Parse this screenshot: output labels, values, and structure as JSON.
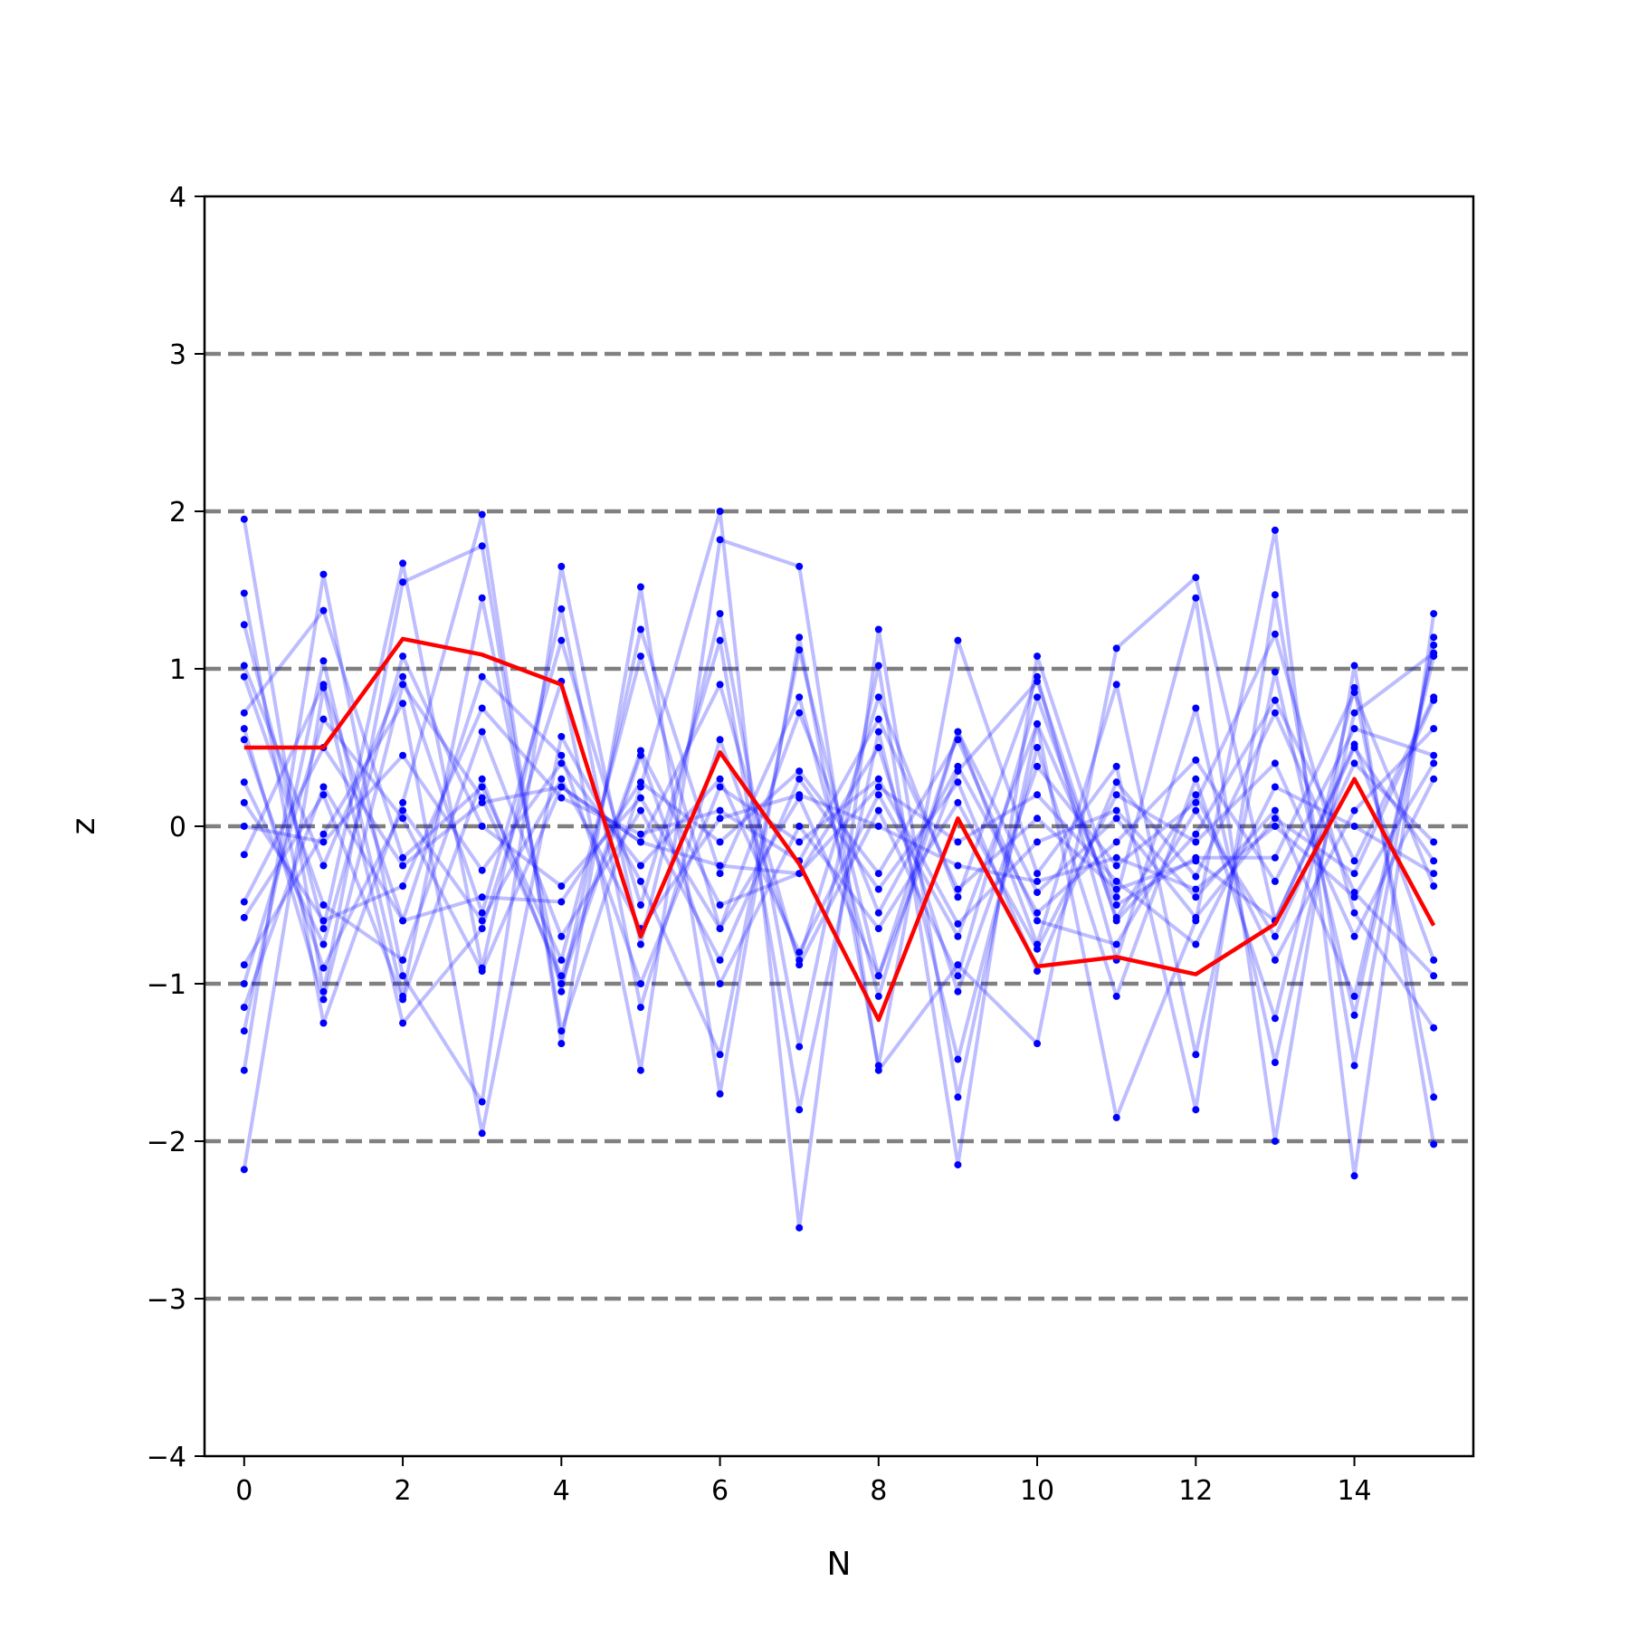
{
  "chart_data": {
    "type": "line",
    "title": "",
    "xlabel": "N",
    "ylabel": "z",
    "xlim": [
      -0.5,
      15.5
    ],
    "ylim": [
      -4,
      4
    ],
    "x": [
      0,
      1,
      2,
      3,
      4,
      5,
      6,
      7,
      8,
      9,
      10,
      11,
      12,
      13,
      14,
      15
    ],
    "xticks": [
      0,
      2,
      4,
      6,
      8,
      10,
      12,
      14
    ],
    "xtick_labels": [
      "0",
      "2",
      "4",
      "6",
      "8",
      "10",
      "12",
      "14"
    ],
    "yticks": [
      -4,
      -3,
      -2,
      -1,
      0,
      1,
      2,
      3,
      4
    ],
    "ytick_labels": [
      "−4",
      "−3",
      "−2",
      "−1",
      "0",
      "1",
      "2",
      "3",
      "4"
    ],
    "reference_lines": [
      -3,
      -2,
      -1,
      0,
      1,
      2,
      3
    ],
    "colors": {
      "samples": "#0000ff",
      "highlight": "#ff0000",
      "reference": "#808080"
    },
    "highlight": [
      0.5,
      0.5,
      1.19,
      1.09,
      0.9,
      -0.7,
      0.47,
      -0.24,
      -1.23,
      0.05,
      -0.89,
      -0.83,
      -0.94,
      -0.62,
      0.3,
      -0.63
    ],
    "series": [
      {
        "values": [
          1.95,
          -1.05,
          1.55,
          1.78,
          -1.3,
          0.25,
          2.0,
          -2.55,
          1.25,
          -1.72,
          0.65,
          -1.85,
          -0.6,
          1.88,
          -2.22,
          1.35
        ]
      },
      {
        "values": [
          -2.18,
          0.88,
          -1.25,
          -0.65,
          0.92,
          -1.55,
          1.82,
          1.65,
          -1.55,
          -0.88,
          -1.38,
          1.13,
          1.58,
          -0.6,
          0.52,
          -0.85
        ]
      },
      {
        "values": [
          1.48,
          -1.25,
          0.15,
          1.98,
          -1.38,
          1.52,
          -1.7,
          1.2,
          -1.52,
          1.18,
          -0.3,
          0.38,
          -1.8,
          1.47,
          -1.52,
          1.2
        ]
      },
      {
        "values": [
          -1.55,
          1.6,
          -0.95,
          -1.75,
          1.65,
          -0.75,
          1.35,
          -1.4,
          1.02,
          -2.15,
          1.08,
          -0.45,
          1.45,
          -2.0,
          1.02,
          -2.02
        ]
      },
      {
        "values": [
          1.28,
          -0.65,
          1.67,
          -0.9,
          1.38,
          -1.15,
          0.55,
          -0.85,
          0.82,
          -0.45,
          0.95,
          -0.85,
          0.75,
          -1.5,
          0.72,
          1.1
        ]
      },
      {
        "values": [
          -1.3,
          1.05,
          -1.08,
          1.45,
          -1.05,
          1.25,
          -0.3,
          0.82,
          -1.08,
          0.6,
          -0.75,
          0.9,
          -1.45,
          0.98,
          -1.2,
          1.15
        ]
      },
      {
        "values": [
          1.02,
          -0.25,
          0.95,
          -0.55,
          1.18,
          -0.5,
          1.18,
          -1.8,
          0.6,
          -1.48,
          0.5,
          -1.08,
          0.3,
          -1.22,
          0.88,
          -1.72
        ]
      },
      {
        "values": [
          0.72,
          1.37,
          -0.2,
          0.25,
          -0.85,
          1.08,
          -0.65,
          0.72,
          -0.55,
          0.38,
          -0.55,
          -0.1,
          0.42,
          -0.35,
          0.62,
          0.45
        ]
      },
      {
        "values": [
          -0.88,
          -0.05,
          0.78,
          -1.95,
          0.57,
          -0.35,
          -1.45,
          1.12,
          -0.95,
          0.35,
          0.92,
          -0.6,
          -0.05,
          0.8,
          -0.22,
          0.82
        ]
      },
      {
        "values": [
          0.62,
          -1.1,
          0.9,
          0.18,
          -0.95,
          0.48,
          -0.5,
          -0.3,
          0.5,
          -1.05,
          0.38,
          -0.25,
          0.15,
          1.22,
          -0.55,
          -1.28
        ]
      },
      {
        "values": [
          -1.15,
          0.25,
          -0.6,
          0.95,
          0.45,
          -1.0,
          0.25,
          -0.1,
          0.3,
          -0.62,
          -0.1,
          0.1,
          -0.45,
          0.1,
          -1.08,
          1.08
        ]
      },
      {
        "values": [
          0.95,
          -0.5,
          -0.85,
          0.6,
          -0.7,
          0.1,
          -0.85,
          0.3,
          -0.4,
          0.28,
          -0.92,
          0.28,
          -0.32,
          0.72,
          -0.42,
          -0.95
        ]
      },
      {
        "values": [
          -1.0,
          0.68,
          0.05,
          -0.92,
          0.25,
          -0.1,
          0.9,
          -0.88,
          0.1,
          -0.95,
          0.82,
          -0.58,
          0.2,
          -0.85,
          0.1,
          0.62
        ]
      },
      {
        "values": [
          0.28,
          -0.75,
          1.08,
          0.0,
          -0.38,
          0.18,
          -0.65,
          0.18,
          -0.95,
          0.6,
          -0.42,
          0.05,
          -0.58,
          0.05,
          -0.3,
          0.8
        ]
      },
      {
        "values": [
          0.15,
          -0.6,
          -0.38,
          0.75,
          0.18,
          -0.05,
          0.1,
          -0.22,
          0.68,
          -0.4,
          0.05,
          -0.4,
          -0.22,
          -0.6,
          0.5,
          -0.22
        ]
      },
      {
        "values": [
          -0.58,
          0.2,
          -1.1,
          0.3,
          -1.0,
          0.45,
          -1.0,
          0.0,
          -0.65,
          0.15,
          -0.78,
          0.2,
          -0.1,
          0.4,
          -0.7,
          0.3
        ]
      },
      {
        "values": [
          0.0,
          -0.1,
          0.45,
          -0.28,
          0.4,
          -0.25,
          0.3,
          -0.8,
          0.2,
          -0.7,
          0.65,
          -0.5,
          -0.2,
          -0.2,
          0.85,
          -0.38
        ]
      },
      {
        "values": [
          -0.18,
          0.9,
          -0.6,
          -0.45,
          -0.48,
          0.28,
          -0.1,
          0.35,
          -0.3,
          0.55,
          -0.6,
          -0.75,
          0.1,
          -0.7,
          0.4,
          -0.1
        ]
      },
      {
        "values": [
          0.55,
          -0.9,
          0.1,
          -0.6,
          0.3,
          -0.65,
          0.05,
          0.2,
          0.0,
          -0.25,
          -0.35,
          -0.2,
          -0.4,
          0.0,
          -0.45,
          0.4
        ]
      },
      {
        "values": [
          -0.48,
          0.5,
          -0.25,
          0.15,
          0.25,
          -0.1,
          -0.25,
          -0.3,
          0.25,
          -0.1,
          0.2,
          -0.35,
          -0.75,
          0.25,
          0.0,
          -0.3
        ]
      }
    ]
  }
}
